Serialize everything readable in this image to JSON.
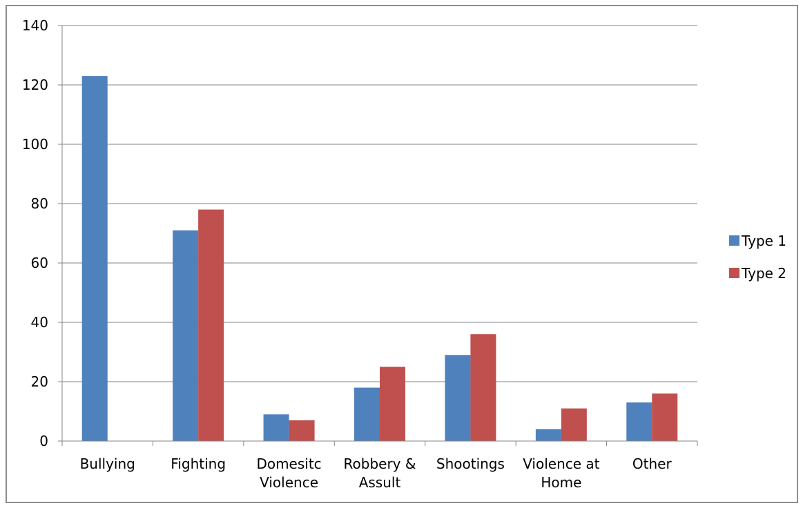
{
  "chart_data": {
    "type": "bar",
    "categories": [
      [
        "Bullying"
      ],
      [
        "Fighting"
      ],
      [
        "Domesitc",
        "Violence"
      ],
      [
        "Robbery &",
        "Assult"
      ],
      [
        "Shootings"
      ],
      [
        "Violence at",
        "Home"
      ],
      [
        "Other"
      ]
    ],
    "series": [
      {
        "name": "Type 1",
        "color": "#4f81bd",
        "values": [
          123,
          71,
          9,
          18,
          29,
          4,
          13
        ]
      },
      {
        "name": "Type 2",
        "color": "#c0504d",
        "values": [
          0,
          78,
          7,
          25,
          36,
          11,
          16
        ]
      }
    ],
    "ylim": [
      0,
      140
    ],
    "yticks": [
      "0",
      "20",
      "40",
      "60",
      "80",
      "100",
      "120",
      "140"
    ],
    "grid": true,
    "legend": "right",
    "title": "",
    "xlabel": "",
    "ylabel": ""
  }
}
